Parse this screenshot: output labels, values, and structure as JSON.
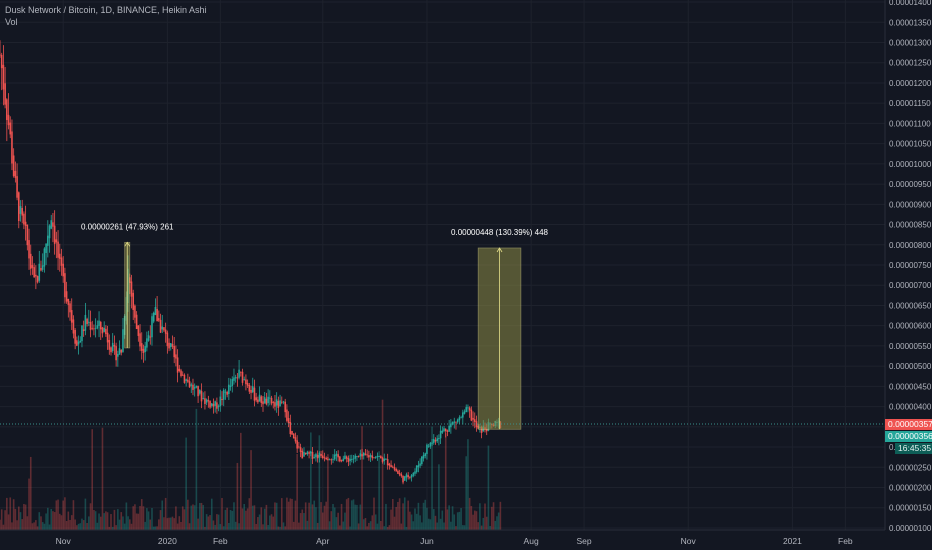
{
  "header": {
    "title": "Dusk Network / Bitcoin, 1D, BINANCE, Heikin Ashi",
    "indicator": "Vol"
  },
  "badges": {
    "last_price": "0.00000357",
    "current_price": "0.00000356",
    "countdown": "16:45:35"
  },
  "colors": {
    "background": "#131722",
    "up": "#26a69a",
    "down": "#ef5350",
    "measure_fill": "#8c8a45",
    "measure_stroke": "#e6e08a",
    "guide_line": "#3a8f8a"
  },
  "chart_data": {
    "type": "candlestick",
    "title": "Dusk Network / Bitcoin, 1D, BINANCE, Heikin Ashi",
    "ylabel": "",
    "ylim": [
      9.5e-07,
      1.405e-05
    ],
    "y_ticks": [
      "0.00000100",
      "0.00000150",
      "0.00000200",
      "0.00000250",
      "0.00000300",
      "0.00000350",
      "0.00000400",
      "0.00000450",
      "0.00000500",
      "0.00000550",
      "0.00000600",
      "0.00000650",
      "0.00000700",
      "0.00000750",
      "0.00000800",
      "0.00000850",
      "0.00000900",
      "0.00000950",
      "0.00001000",
      "0.00001050",
      "0.00001100",
      "0.00001150",
      "0.00001200",
      "0.00001250",
      "0.00001300",
      "0.00001350",
      "0.00001400"
    ],
    "x_ticks": [
      "Nov",
      "2020",
      "Feb",
      "Apr",
      "Jun",
      "Aug",
      "Sep",
      "Nov",
      "2021",
      "Feb"
    ],
    "grid": true,
    "price_path": [
      {
        "x": "2019-09-25",
        "y": 1.27e-05
      },
      {
        "x": "2019-09-30",
        "y": 1.1e-05
      },
      {
        "x": "2019-10-05",
        "y": 9e-06
      },
      {
        "x": "2019-10-10",
        "y": 8.2e-06
      },
      {
        "x": "2019-10-15",
        "y": 7e-06
      },
      {
        "x": "2019-10-20",
        "y": 7.6e-06
      },
      {
        "x": "2019-10-25",
        "y": 8.8e-06
      },
      {
        "x": "2019-10-30",
        "y": 7.4e-06
      },
      {
        "x": "2019-11-04",
        "y": 6.6e-06
      },
      {
        "x": "2019-11-09",
        "y": 5.5e-06
      },
      {
        "x": "2019-11-14",
        "y": 6.1e-06
      },
      {
        "x": "2019-11-19",
        "y": 6e-06
      },
      {
        "x": "2019-11-25",
        "y": 5.9e-06
      },
      {
        "x": "2019-12-01",
        "y": 5.3e-06
      },
      {
        "x": "2019-12-05",
        "y": 5.4e-06
      },
      {
        "x": "2019-12-09",
        "y": 7.4e-06
      },
      {
        "x": "2019-12-13",
        "y": 6.1e-06
      },
      {
        "x": "2019-12-18",
        "y": 5.4e-06
      },
      {
        "x": "2019-12-25",
        "y": 6.3e-06
      },
      {
        "x": "2020-01-01",
        "y": 5.6e-06
      },
      {
        "x": "2020-01-08",
        "y": 4.9e-06
      },
      {
        "x": "2020-01-15",
        "y": 4.5e-06
      },
      {
        "x": "2020-01-22",
        "y": 4.2e-06
      },
      {
        "x": "2020-01-29",
        "y": 4e-06
      },
      {
        "x": "2020-02-05",
        "y": 4.4e-06
      },
      {
        "x": "2020-02-12",
        "y": 4.8e-06
      },
      {
        "x": "2020-02-17",
        "y": 4.6e-06
      },
      {
        "x": "2020-02-22",
        "y": 4.2e-06
      },
      {
        "x": "2020-03-01",
        "y": 4.1e-06
      },
      {
        "x": "2020-03-10",
        "y": 4e-06
      },
      {
        "x": "2020-03-13",
        "y": 3.3e-06
      },
      {
        "x": "2020-03-20",
        "y": 2.8e-06
      },
      {
        "x": "2020-04-01",
        "y": 2.8e-06
      },
      {
        "x": "2020-04-15",
        "y": 2.7e-06
      },
      {
        "x": "2020-05-01",
        "y": 2.8e-06
      },
      {
        "x": "2020-05-10",
        "y": 2.6e-06
      },
      {
        "x": "2020-05-18",
        "y": 2.2e-06
      },
      {
        "x": "2020-05-25",
        "y": 2.4e-06
      },
      {
        "x": "2020-06-01",
        "y": 3e-06
      },
      {
        "x": "2020-06-10",
        "y": 3.4e-06
      },
      {
        "x": "2020-06-20",
        "y": 3.7e-06
      },
      {
        "x": "2020-06-25",
        "y": 3.9e-06
      },
      {
        "x": "2020-07-01",
        "y": 3.4e-06
      },
      {
        "x": "2020-07-07",
        "y": 3.5e-06
      },
      {
        "x": "2020-07-14",
        "y": 3.57e-06
      }
    ],
    "volume_level": "low",
    "measurements": [
      {
        "label": "0.00000261 (47.93%) 261",
        "from": {
          "x": "2019-12-07",
          "y": 5.45e-06
        },
        "to": {
          "x": "2019-12-10",
          "y": 8.06e-06
        }
      },
      {
        "label": "0.00000448 (130.39%) 448",
        "from": {
          "x": "2020-07-01",
          "y": 3.44e-06
        },
        "to": {
          "x": "2020-07-26",
          "y": 7.92e-06
        }
      }
    ],
    "horizontal_line": {
      "y": 3.57e-06
    }
  }
}
